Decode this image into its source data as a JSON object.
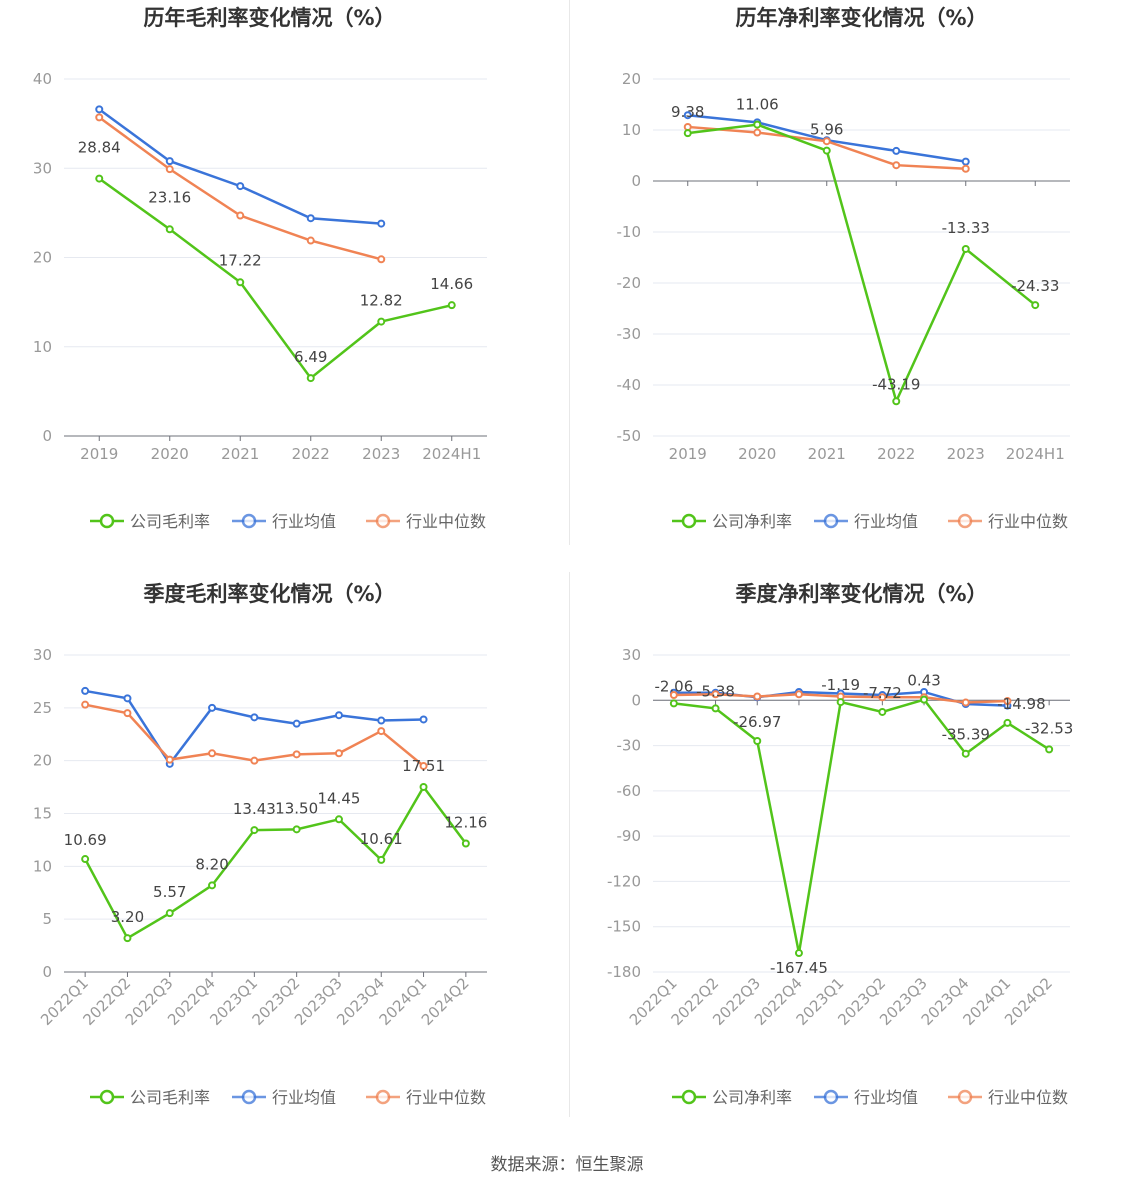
{
  "source_text": "数据来源：恒生聚源",
  "legend_common": [
    "行业均值",
    "行业中位数"
  ],
  "colors": {
    "company": "#52c41a",
    "avg": "#3a74d9",
    "median": "#f08354"
  },
  "chart_data": [
    {
      "type": "line",
      "title": "历年毛利率变化情况（%）",
      "categories": [
        "2019",
        "2020",
        "2021",
        "2022",
        "2023",
        "2024H1"
      ],
      "ylim": [
        0,
        40
      ],
      "yticks": [
        0,
        10,
        20,
        30,
        40
      ],
      "series": [
        {
          "name": "公司毛利率",
          "values": [
            28.84,
            23.16,
            17.22,
            6.49,
            12.82,
            14.66
          ],
          "labels": [
            "28.84",
            "23.16",
            "17.22",
            "6.49",
            "12.82",
            "14.66"
          ]
        },
        {
          "name": "行业均值",
          "values": [
            36.6,
            30.8,
            28.0,
            24.4,
            23.8,
            null
          ]
        },
        {
          "name": "行业中位数",
          "values": [
            35.7,
            29.9,
            24.7,
            21.9,
            19.8,
            null
          ]
        }
      ]
    },
    {
      "type": "line",
      "title": "历年净利率变化情况（%）",
      "categories": [
        "2019",
        "2020",
        "2021",
        "2022",
        "2023",
        "2024H1"
      ],
      "ylim": [
        -50,
        20
      ],
      "yticks": [
        -50,
        -40,
        -30,
        -20,
        -10,
        0,
        10,
        20
      ],
      "series": [
        {
          "name": "公司净利率",
          "values": [
            9.38,
            11.06,
            5.96,
            -43.19,
            -13.33,
            -24.33
          ],
          "labels": [
            "9.38",
            "11.06",
            "5.96",
            "-43.19",
            "-13.33",
            "-24.33"
          ]
        },
        {
          "name": "行业均值",
          "values": [
            12.9,
            11.5,
            8.0,
            5.9,
            3.8,
            null
          ]
        },
        {
          "name": "行业中位数",
          "values": [
            10.6,
            9.5,
            7.8,
            3.1,
            2.4,
            null
          ]
        }
      ]
    },
    {
      "type": "line",
      "title": "季度毛利率变化情况（%）",
      "categories": [
        "2022Q1",
        "2022Q2",
        "2022Q3",
        "2022Q4",
        "2023Q1",
        "2023Q2",
        "2023Q3",
        "2023Q4",
        "2024Q1",
        "2024Q2"
      ],
      "ylim": [
        0,
        30
      ],
      "yticks": [
        0,
        5,
        10,
        15,
        20,
        25,
        30
      ],
      "series": [
        {
          "name": "公司毛利率",
          "values": [
            10.69,
            3.2,
            5.57,
            8.2,
            13.43,
            13.5,
            14.45,
            10.61,
            17.51,
            12.16
          ],
          "labels": [
            "10.69",
            "3.20",
            "5.57",
            "8.20",
            "13.43",
            "13.50",
            "14.45",
            "10.61",
            "17.51",
            "12.16"
          ]
        },
        {
          "name": "行业均值",
          "values": [
            26.6,
            25.9,
            19.7,
            25.0,
            24.1,
            23.5,
            24.3,
            23.8,
            23.9,
            null
          ]
        },
        {
          "name": "行业中位数",
          "values": [
            25.3,
            24.5,
            20.1,
            20.7,
            20.0,
            20.6,
            20.7,
            22.8,
            19.5,
            null
          ]
        }
      ]
    },
    {
      "type": "line",
      "title": "季度净利率变化情况（%）",
      "categories": [
        "2022Q1",
        "2022Q2",
        "2022Q3",
        "2022Q4",
        "2023Q1",
        "2023Q2",
        "2023Q3",
        "2023Q4",
        "2024Q1",
        "2024Q2"
      ],
      "ylim": [
        -180,
        30
      ],
      "yticks": [
        -180,
        -150,
        -120,
        -90,
        -60,
        -30,
        0,
        30
      ],
      "series": [
        {
          "name": "公司净利率",
          "values": [
            -2.06,
            -5.38,
            -26.97,
            -167.45,
            -1.19,
            -7.72,
            0.43,
            -35.39,
            -14.98,
            -32.53
          ],
          "labels": [
            "-2.06",
            "-5.38",
            "-26.97",
            "-167.45",
            "-1.19",
            "-7.72",
            "0.43",
            "-35.39",
            "-14.98",
            "-32.53"
          ]
        },
        {
          "name": "行业均值",
          "values": [
            5.0,
            5.0,
            2.0,
            5.5,
            4.5,
            3.5,
            5.5,
            -2.5,
            -3.5,
            null
          ]
        },
        {
          "name": "行业中位数",
          "values": [
            3.5,
            4.0,
            2.5,
            4.0,
            2.5,
            2.0,
            2.0,
            -1.5,
            -0.5,
            null
          ]
        }
      ]
    }
  ]
}
